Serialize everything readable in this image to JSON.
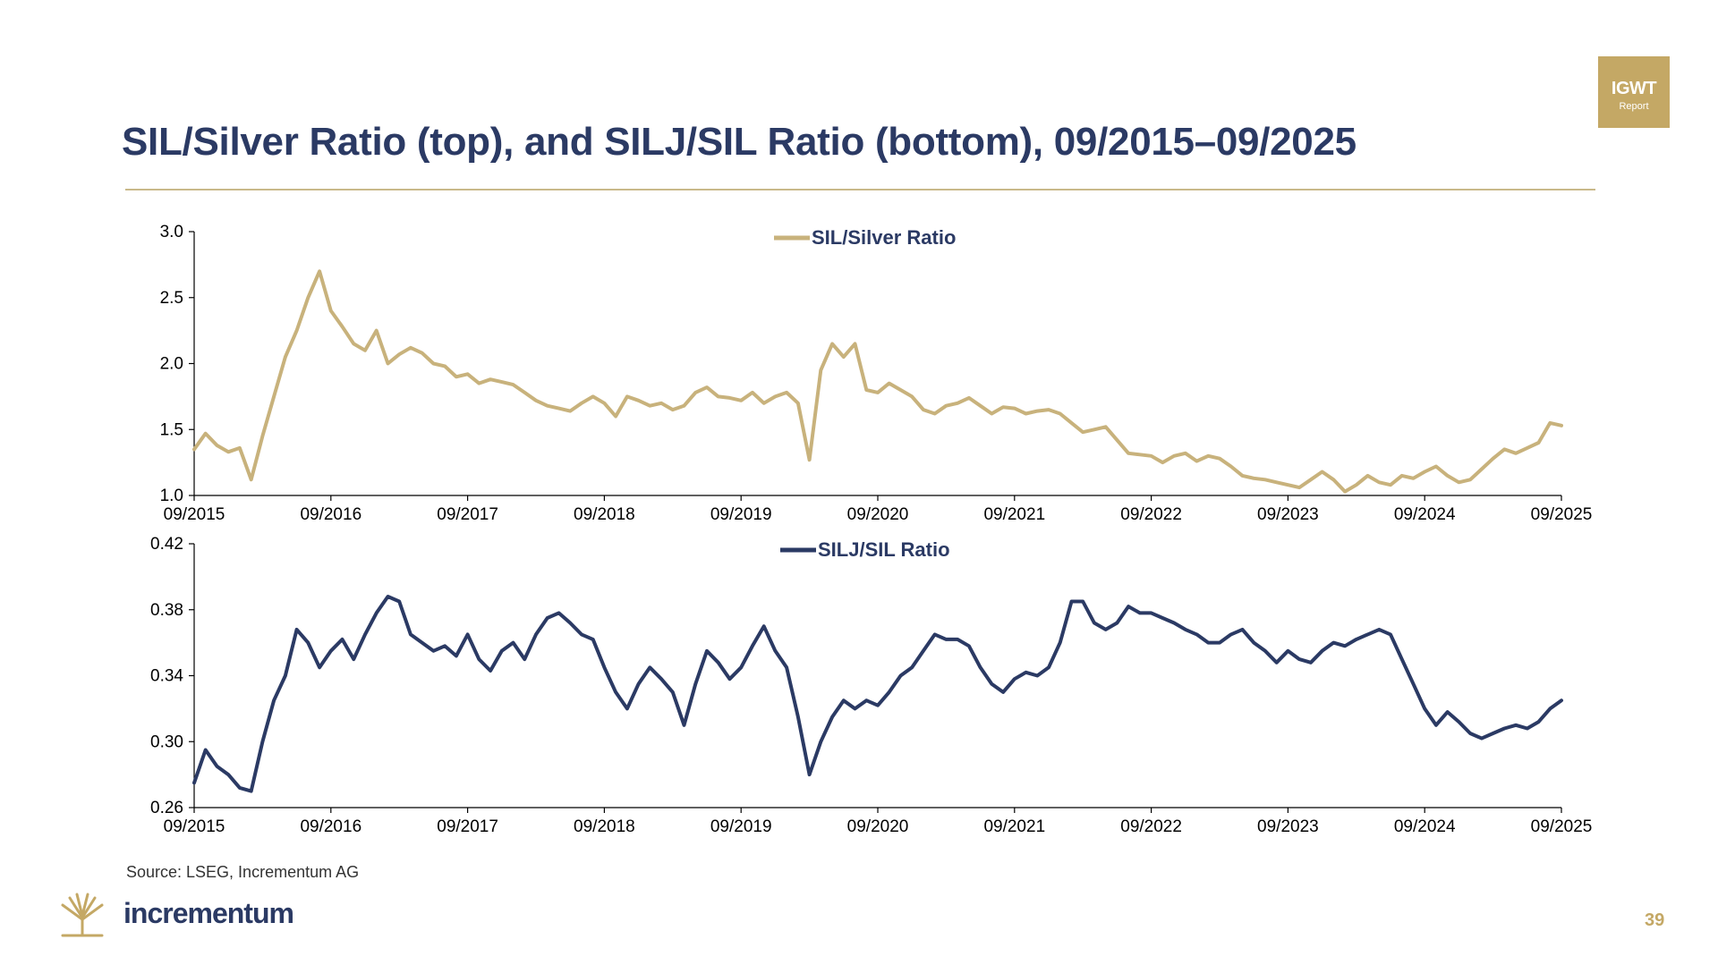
{
  "title": "SIL/Silver Ratio (top), and SILJ/SIL Ratio (bottom), 09/2015–09/2025",
  "badge": {
    "main": "IGWT",
    "sub": "Report"
  },
  "source": "Source: LSEG, Incrementum AG",
  "brand": "incrementum",
  "page_number": "39",
  "colors": {
    "navy": "#2b3a64",
    "gold": "#c4a865",
    "silver_series": "#c8b27c",
    "silj_series": "#2b3a64"
  },
  "chart_data": [
    {
      "type": "line",
      "series": [
        {
          "name": "SIL/Silver Ratio",
          "color": "#c8b27c",
          "points": [
            [
              "2015-09",
              1.35
            ],
            [
              "2015-10",
              1.47
            ],
            [
              "2015-11",
              1.38
            ],
            [
              "2015-12",
              1.33
            ],
            [
              "2016-01",
              1.36
            ],
            [
              "2016-02",
              1.12
            ],
            [
              "2016-03",
              1.45
            ],
            [
              "2016-04",
              1.75
            ],
            [
              "2016-05",
              2.05
            ],
            [
              "2016-06",
              2.25
            ],
            [
              "2016-07",
              2.5
            ],
            [
              "2016-08",
              2.7
            ],
            [
              "2016-09",
              2.4
            ],
            [
              "2016-10",
              2.28
            ],
            [
              "2016-11",
              2.15
            ],
            [
              "2016-12",
              2.1
            ],
            [
              "2017-01",
              2.25
            ],
            [
              "2017-02",
              2.0
            ],
            [
              "2017-03",
              2.07
            ],
            [
              "2017-04",
              2.12
            ],
            [
              "2017-05",
              2.08
            ],
            [
              "2017-06",
              2.0
            ],
            [
              "2017-07",
              1.98
            ],
            [
              "2017-08",
              1.9
            ],
            [
              "2017-09",
              1.92
            ],
            [
              "2017-10",
              1.85
            ],
            [
              "2017-11",
              1.88
            ],
            [
              "2017-12",
              1.86
            ],
            [
              "2018-01",
              1.84
            ],
            [
              "2018-02",
              1.78
            ],
            [
              "2018-03",
              1.72
            ],
            [
              "2018-04",
              1.68
            ],
            [
              "2018-05",
              1.66
            ],
            [
              "2018-06",
              1.64
            ],
            [
              "2018-07",
              1.7
            ],
            [
              "2018-08",
              1.75
            ],
            [
              "2018-09",
              1.7
            ],
            [
              "2018-10",
              1.6
            ],
            [
              "2018-11",
              1.75
            ],
            [
              "2018-12",
              1.72
            ],
            [
              "2019-01",
              1.68
            ],
            [
              "2019-02",
              1.7
            ],
            [
              "2019-03",
              1.65
            ],
            [
              "2019-04",
              1.68
            ],
            [
              "2019-05",
              1.78
            ],
            [
              "2019-06",
              1.82
            ],
            [
              "2019-07",
              1.75
            ],
            [
              "2019-08",
              1.74
            ],
            [
              "2019-09",
              1.72
            ],
            [
              "2019-10",
              1.78
            ],
            [
              "2019-11",
              1.7
            ],
            [
              "2019-12",
              1.75
            ],
            [
              "2020-01",
              1.78
            ],
            [
              "2020-02",
              1.7
            ],
            [
              "2020-03",
              1.27
            ],
            [
              "2020-04",
              1.95
            ],
            [
              "2020-05",
              2.15
            ],
            [
              "2020-06",
              2.05
            ],
            [
              "2020-07",
              2.15
            ],
            [
              "2020-08",
              1.8
            ],
            [
              "2020-09",
              1.78
            ],
            [
              "2020-10",
              1.85
            ],
            [
              "2020-11",
              1.8
            ],
            [
              "2020-12",
              1.75
            ],
            [
              "2021-01",
              1.65
            ],
            [
              "2021-02",
              1.62
            ],
            [
              "2021-03",
              1.68
            ],
            [
              "2021-04",
              1.7
            ],
            [
              "2021-05",
              1.74
            ],
            [
              "2021-06",
              1.68
            ],
            [
              "2021-07",
              1.62
            ],
            [
              "2021-08",
              1.67
            ],
            [
              "2021-09",
              1.66
            ],
            [
              "2021-10",
              1.62
            ],
            [
              "2021-11",
              1.64
            ],
            [
              "2021-12",
              1.65
            ],
            [
              "2022-01",
              1.62
            ],
            [
              "2022-02",
              1.55
            ],
            [
              "2022-03",
              1.48
            ],
            [
              "2022-04",
              1.5
            ],
            [
              "2022-05",
              1.52
            ],
            [
              "2022-06",
              1.42
            ],
            [
              "2022-07",
              1.32
            ],
            [
              "2022-08",
              1.31
            ],
            [
              "2022-09",
              1.3
            ],
            [
              "2022-10",
              1.25
            ],
            [
              "2022-11",
              1.3
            ],
            [
              "2022-12",
              1.32
            ],
            [
              "2023-01",
              1.26
            ],
            [
              "2023-02",
              1.3
            ],
            [
              "2023-03",
              1.28
            ],
            [
              "2023-04",
              1.22
            ],
            [
              "2023-05",
              1.15
            ],
            [
              "2023-06",
              1.13
            ],
            [
              "2023-07",
              1.12
            ],
            [
              "2023-08",
              1.1
            ],
            [
              "2023-09",
              1.08
            ],
            [
              "2023-10",
              1.06
            ],
            [
              "2023-11",
              1.12
            ],
            [
              "2023-12",
              1.18
            ],
            [
              "2024-01",
              1.12
            ],
            [
              "2024-02",
              1.03
            ],
            [
              "2024-03",
              1.08
            ],
            [
              "2024-04",
              1.15
            ],
            [
              "2024-05",
              1.1
            ],
            [
              "2024-06",
              1.08
            ],
            [
              "2024-07",
              1.15
            ],
            [
              "2024-08",
              1.13
            ],
            [
              "2024-09",
              1.18
            ],
            [
              "2024-10",
              1.22
            ],
            [
              "2024-11",
              1.15
            ],
            [
              "2024-12",
              1.1
            ],
            [
              "2025-01",
              1.12
            ],
            [
              "2025-02",
              1.2
            ],
            [
              "2025-03",
              1.28
            ],
            [
              "2025-04",
              1.35
            ],
            [
              "2025-05",
              1.32
            ],
            [
              "2025-06",
              1.36
            ],
            [
              "2025-07",
              1.4
            ],
            [
              "2025-08",
              1.55
            ],
            [
              "2025-09",
              1.53
            ]
          ]
        }
      ],
      "legend": "top-center",
      "ylim": [
        1.0,
        3.0
      ],
      "yticks": [
        "1.0",
        "1.5",
        "2.0",
        "2.5",
        "3.0"
      ],
      "xticks": [
        "09/2015",
        "09/2016",
        "09/2017",
        "09/2018",
        "09/2019",
        "09/2020",
        "09/2021",
        "09/2022",
        "09/2023",
        "09/2024",
        "09/2025"
      ]
    },
    {
      "type": "line",
      "series": [
        {
          "name": "SILJ/SIL Ratio",
          "color": "#2b3a64",
          "points": [
            [
              "2015-09",
              0.275
            ],
            [
              "2015-10",
              0.295
            ],
            [
              "2015-11",
              0.285
            ],
            [
              "2015-12",
              0.28
            ],
            [
              "2016-01",
              0.272
            ],
            [
              "2016-02",
              0.27
            ],
            [
              "2016-03",
              0.3
            ],
            [
              "2016-04",
              0.325
            ],
            [
              "2016-05",
              0.34
            ],
            [
              "2016-06",
              0.368
            ],
            [
              "2016-07",
              0.36
            ],
            [
              "2016-08",
              0.345
            ],
            [
              "2016-09",
              0.355
            ],
            [
              "2016-10",
              0.362
            ],
            [
              "2016-11",
              0.35
            ],
            [
              "2016-12",
              0.365
            ],
            [
              "2017-01",
              0.378
            ],
            [
              "2017-02",
              0.388
            ],
            [
              "2017-03",
              0.385
            ],
            [
              "2017-04",
              0.365
            ],
            [
              "2017-05",
              0.36
            ],
            [
              "2017-06",
              0.355
            ],
            [
              "2017-07",
              0.358
            ],
            [
              "2017-08",
              0.352
            ],
            [
              "2017-09",
              0.365
            ],
            [
              "2017-10",
              0.35
            ],
            [
              "2017-11",
              0.343
            ],
            [
              "2017-12",
              0.355
            ],
            [
              "2018-01",
              0.36
            ],
            [
              "2018-02",
              0.35
            ],
            [
              "2018-03",
              0.365
            ],
            [
              "2018-04",
              0.375
            ],
            [
              "2018-05",
              0.378
            ],
            [
              "2018-06",
              0.372
            ],
            [
              "2018-07",
              0.365
            ],
            [
              "2018-08",
              0.362
            ],
            [
              "2018-09",
              0.345
            ],
            [
              "2018-10",
              0.33
            ],
            [
              "2018-11",
              0.32
            ],
            [
              "2018-12",
              0.335
            ],
            [
              "2019-01",
              0.345
            ],
            [
              "2019-02",
              0.338
            ],
            [
              "2019-03",
              0.33
            ],
            [
              "2019-04",
              0.31
            ],
            [
              "2019-05",
              0.335
            ],
            [
              "2019-06",
              0.355
            ],
            [
              "2019-07",
              0.348
            ],
            [
              "2019-08",
              0.338
            ],
            [
              "2019-09",
              0.345
            ],
            [
              "2019-10",
              0.358
            ],
            [
              "2019-11",
              0.37
            ],
            [
              "2019-12",
              0.355
            ],
            [
              "2020-01",
              0.345
            ],
            [
              "2020-02",
              0.315
            ],
            [
              "2020-03",
              0.28
            ],
            [
              "2020-04",
              0.3
            ],
            [
              "2020-05",
              0.315
            ],
            [
              "2020-06",
              0.325
            ],
            [
              "2020-07",
              0.32
            ],
            [
              "2020-08",
              0.325
            ],
            [
              "2020-09",
              0.322
            ],
            [
              "2020-10",
              0.33
            ],
            [
              "2020-11",
              0.34
            ],
            [
              "2020-12",
              0.345
            ],
            [
              "2021-01",
              0.355
            ],
            [
              "2021-02",
              0.365
            ],
            [
              "2021-03",
              0.362
            ],
            [
              "2021-04",
              0.362
            ],
            [
              "2021-05",
              0.358
            ],
            [
              "2021-06",
              0.345
            ],
            [
              "2021-07",
              0.335
            ],
            [
              "2021-08",
              0.33
            ],
            [
              "2021-09",
              0.338
            ],
            [
              "2021-10",
              0.342
            ],
            [
              "2021-11",
              0.34
            ],
            [
              "2021-12",
              0.345
            ],
            [
              "2022-01",
              0.36
            ],
            [
              "2022-02",
              0.385
            ],
            [
              "2022-03",
              0.385
            ],
            [
              "2022-04",
              0.372
            ],
            [
              "2022-05",
              0.368
            ],
            [
              "2022-06",
              0.372
            ],
            [
              "2022-07",
              0.382
            ],
            [
              "2022-08",
              0.378
            ],
            [
              "2022-09",
              0.378
            ],
            [
              "2022-10",
              0.375
            ],
            [
              "2022-11",
              0.372
            ],
            [
              "2022-12",
              0.368
            ],
            [
              "2023-01",
              0.365
            ],
            [
              "2023-02",
              0.36
            ],
            [
              "2023-03",
              0.36
            ],
            [
              "2023-04",
              0.365
            ],
            [
              "2023-05",
              0.368
            ],
            [
              "2023-06",
              0.36
            ],
            [
              "2023-07",
              0.355
            ],
            [
              "2023-08",
              0.348
            ],
            [
              "2023-09",
              0.355
            ],
            [
              "2023-10",
              0.35
            ],
            [
              "2023-11",
              0.348
            ],
            [
              "2023-12",
              0.355
            ],
            [
              "2024-01",
              0.36
            ],
            [
              "2024-02",
              0.358
            ],
            [
              "2024-03",
              0.362
            ],
            [
              "2024-04",
              0.365
            ],
            [
              "2024-05",
              0.368
            ],
            [
              "2024-06",
              0.365
            ],
            [
              "2024-07",
              0.35
            ],
            [
              "2024-08",
              0.335
            ],
            [
              "2024-09",
              0.32
            ],
            [
              "2024-10",
              0.31
            ],
            [
              "2024-11",
              0.318
            ],
            [
              "2024-12",
              0.312
            ],
            [
              "2025-01",
              0.305
            ],
            [
              "2025-02",
              0.302
            ],
            [
              "2025-03",
              0.305
            ],
            [
              "2025-04",
              0.308
            ],
            [
              "2025-05",
              0.31
            ],
            [
              "2025-06",
              0.308
            ],
            [
              "2025-07",
              0.312
            ],
            [
              "2025-08",
              0.32
            ],
            [
              "2025-09",
              0.325
            ]
          ]
        }
      ],
      "legend": "top-center",
      "ylim": [
        0.26,
        0.42
      ],
      "yticks": [
        "0.26",
        "0.30",
        "0.34",
        "0.38",
        "0.42"
      ],
      "xticks": [
        "09/2015",
        "09/2016",
        "09/2017",
        "09/2018",
        "09/2019",
        "09/2020",
        "09/2021",
        "09/2022",
        "09/2023",
        "09/2024",
        "09/2025"
      ]
    }
  ]
}
